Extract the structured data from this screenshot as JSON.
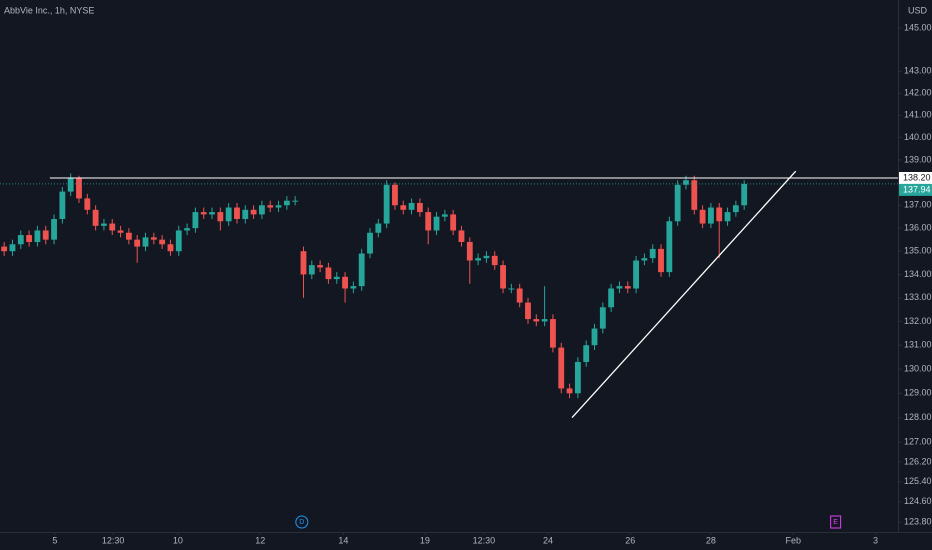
{
  "chart_data": {
    "type": "candlestick",
    "title": "AbbVie Inc., 1h, NYSE",
    "currency": "USD",
    "up_color": "#26a69a",
    "down_color": "#ef5350",
    "log_scale": true,
    "ylim": [
      123.4,
      146.3
    ],
    "yticks": [
      {
        "value": 145,
        "label": "145.00"
      },
      {
        "value": 143,
        "label": "143.00"
      },
      {
        "value": 142,
        "label": "142.00"
      },
      {
        "value": 141,
        "label": "141.00"
      },
      {
        "value": 140,
        "label": "140.00"
      },
      {
        "value": 139,
        "label": "139.00"
      },
      {
        "value": 137,
        "label": "137.00"
      },
      {
        "value": 136,
        "label": "136.00"
      },
      {
        "value": 135,
        "label": "135.00"
      },
      {
        "value": 134,
        "label": "134.00"
      },
      {
        "value": 133,
        "label": "133.00"
      },
      {
        "value": 132,
        "label": "132.00"
      },
      {
        "value": 131,
        "label": "131.00"
      },
      {
        "value": 130,
        "label": "130.00"
      },
      {
        "value": 129,
        "label": "129.00"
      },
      {
        "value": 128,
        "label": "128.00"
      },
      {
        "value": 127,
        "label": "127.00"
      },
      {
        "value": 126.2,
        "label": "126.20"
      },
      {
        "value": 125.4,
        "label": "125.40"
      },
      {
        "value": 124.6,
        "label": "124.60"
      },
      {
        "value": 123.8,
        "label": "123.80"
      }
    ],
    "xlim": [
      -0.5,
      107.5
    ],
    "xticks": [
      {
        "value": 6.1,
        "label": "5"
      },
      {
        "value": 13.1,
        "label": "12:30"
      },
      {
        "value": 20.9,
        "label": "10"
      },
      {
        "value": 30.8,
        "label": "12"
      },
      {
        "value": 40.8,
        "label": "14"
      },
      {
        "value": 50.6,
        "label": "19"
      },
      {
        "value": 57.7,
        "label": "12:30"
      },
      {
        "value": 65.4,
        "label": "24"
      },
      {
        "value": 75.3,
        "label": "26"
      },
      {
        "value": 85.0,
        "label": "28"
      },
      {
        "value": 94.9,
        "label": "Feb"
      },
      {
        "value": 104.8,
        "label": "3"
      }
    ],
    "open": [
      135.2,
      135.0,
      135.3,
      135.7,
      135.4,
      135.9,
      135.5,
      136.4,
      137.6,
      138.2,
      137.3,
      136.8,
      136.1,
      136.2,
      135.9,
      135.8,
      135.5,
      135.2,
      135.6,
      135.5,
      135.3,
      135.0,
      135.9,
      136.0,
      136.7,
      136.6,
      136.7,
      136.3,
      136.9,
      136.4,
      136.8,
      136.6,
      137.0,
      136.9,
      137.0,
      137.2,
      135.0,
      134.0,
      134.4,
      134.3,
      133.8,
      133.9,
      133.4,
      133.5,
      134.9,
      135.8,
      136.2,
      137.9,
      137.0,
      136.8,
      137.1,
      136.7,
      135.9,
      136.5,
      136.6,
      135.9,
      135.4,
      134.6,
      134.7,
      134.8,
      134.4,
      133.4,
      133.4,
      132.8,
      132.1,
      132.0,
      132.1,
      130.9,
      129.2,
      129.0,
      130.3,
      131.0,
      131.7,
      132.6,
      133.4,
      133.5,
      133.4,
      134.6,
      134.7,
      135.1,
      134.1,
      136.3,
      137.9,
      138.1,
      136.8,
      136.2,
      136.9,
      136.3,
      136.7,
      137.0
    ],
    "high": [
      135.4,
      135.5,
      135.9,
      135.9,
      136.1,
      136.1,
      136.6,
      137.8,
      138.4,
      138.3,
      137.5,
      137.0,
      136.4,
      136.4,
      136.1,
      136.0,
      135.7,
      135.8,
      135.8,
      135.7,
      135.5,
      136.1,
      136.2,
      136.9,
      136.9,
      136.9,
      136.9,
      137.1,
      137.1,
      137.0,
      137.0,
      137.2,
      137.2,
      137.2,
      137.4,
      137.4,
      135.2,
      134.6,
      134.6,
      134.5,
      134.1,
      134.1,
      133.7,
      135.1,
      136.0,
      136.4,
      138.1,
      138.0,
      137.2,
      137.3,
      137.3,
      136.9,
      136.7,
      136.8,
      136.8,
      136.1,
      135.6,
      134.9,
      135.0,
      135.0,
      134.6,
      133.6,
      133.6,
      133.0,
      132.3,
      133.5,
      132.3,
      131.1,
      129.4,
      130.5,
      131.2,
      131.9,
      132.8,
      133.6,
      133.7,
      133.7,
      134.8,
      134.9,
      135.3,
      135.3,
      136.5,
      138.1,
      138.3,
      138.3,
      137.0,
      137.1,
      137.1,
      136.9,
      137.2,
      138.1
    ],
    "low": [
      134.8,
      134.8,
      135.1,
      135.2,
      135.2,
      135.3,
      135.3,
      136.2,
      137.4,
      137.1,
      136.6,
      135.9,
      135.9,
      135.7,
      135.6,
      135.3,
      134.5,
      135.0,
      135.3,
      135.1,
      134.8,
      134.8,
      135.7,
      135.8,
      136.4,
      136.4,
      135.9,
      136.1,
      136.2,
      136.2,
      136.4,
      136.4,
      136.7,
      136.7,
      136.8,
      137.0,
      133.0,
      133.8,
      134.1,
      133.6,
      133.6,
      132.8,
      133.2,
      133.3,
      134.7,
      135.6,
      136.0,
      136.8,
      136.6,
      136.6,
      136.5,
      135.3,
      135.7,
      136.3,
      135.7,
      135.2,
      133.6,
      134.4,
      134.5,
      134.2,
      133.2,
      133.2,
      132.6,
      131.9,
      131.8,
      131.8,
      130.7,
      129.0,
      128.8,
      128.8,
      130.1,
      130.8,
      131.5,
      132.4,
      133.2,
      133.2,
      133.2,
      134.4,
      134.5,
      133.9,
      133.9,
      136.1,
      137.7,
      136.6,
      136.0,
      136.0,
      134.7,
      136.1,
      136.5,
      136.8
    ],
    "close": [
      135.0,
      135.3,
      135.7,
      135.4,
      135.9,
      135.5,
      136.4,
      137.6,
      138.2,
      137.3,
      136.8,
      136.1,
      136.2,
      135.9,
      135.8,
      135.5,
      135.2,
      135.6,
      135.5,
      135.3,
      135.0,
      135.9,
      136.0,
      136.7,
      136.6,
      136.7,
      136.3,
      136.9,
      136.4,
      136.8,
      136.6,
      137.0,
      136.9,
      137.0,
      137.2,
      137.2,
      134.0,
      134.4,
      134.3,
      133.8,
      133.9,
      133.4,
      133.5,
      134.9,
      135.8,
      136.2,
      137.9,
      137.0,
      136.8,
      137.1,
      136.7,
      135.9,
      136.5,
      136.6,
      135.9,
      135.4,
      134.6,
      134.7,
      134.8,
      134.4,
      133.4,
      133.4,
      132.8,
      132.1,
      132.0,
      132.1,
      130.9,
      129.2,
      129.0,
      130.3,
      131.0,
      131.7,
      132.6,
      133.4,
      133.5,
      133.4,
      134.6,
      134.7,
      135.1,
      134.1,
      136.3,
      137.9,
      138.1,
      136.8,
      136.2,
      136.9,
      136.3,
      136.7,
      137.0,
      137.94
    ],
    "horizontal_line": {
      "value": 138.2,
      "label": "138.20",
      "x_start": 5.5
    },
    "last_price": {
      "value": 137.94,
      "label": "137.94"
    },
    "trendline": {
      "x": [
        68.3,
        95.2
      ],
      "y": [
        128.0,
        138.5
      ]
    },
    "events": [
      {
        "label": "D",
        "x": 35.8
      },
      {
        "label": "E",
        "x": 100.0
      }
    ]
  }
}
